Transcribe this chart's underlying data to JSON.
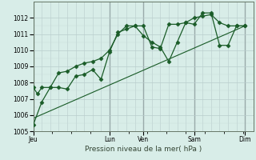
{
  "background_color": "#d8ede8",
  "plot_bg_color": "#d8ede8",
  "grid_color_minor": "#c8ddd8",
  "grid_color_major": "#b8cccc",
  "vline_color": "#99aaaa",
  "line_color": "#1a5c28",
  "spine_color": "#667766",
  "title": "Pression niveau de la mer( hPa )",
  "ylim": [
    1005,
    1013
  ],
  "yticks": [
    1005,
    1006,
    1007,
    1008,
    1009,
    1010,
    1011,
    1012
  ],
  "x_day_labels": [
    "Jeu",
    "Lun",
    "Ven",
    "Sam",
    "Dim"
  ],
  "x_day_positions": [
    0,
    9,
    13,
    19,
    25
  ],
  "xlim": [
    0,
    26
  ],
  "series1_x": [
    0,
    0.5,
    1,
    2,
    3,
    4,
    5,
    6,
    7,
    8,
    9,
    10,
    11,
    12,
    13,
    14,
    15,
    16,
    17,
    18,
    19,
    20,
    21,
    22,
    23,
    24,
    25
  ],
  "series1_y": [
    1007.7,
    1007.3,
    1007.7,
    1007.7,
    1008.6,
    1008.7,
    1009.0,
    1009.2,
    1009.3,
    1009.5,
    1010.0,
    1011.0,
    1011.5,
    1011.5,
    1011.5,
    1010.2,
    1010.1,
    1011.6,
    1011.6,
    1011.7,
    1011.6,
    1012.3,
    1012.3,
    1010.3,
    1010.3,
    1011.5,
    1011.5
  ],
  "series2_x": [
    0,
    1,
    2,
    3,
    4,
    5,
    6,
    7,
    8,
    9,
    10,
    11,
    12,
    13,
    14,
    15,
    16,
    17,
    18,
    19,
    20,
    21,
    22,
    23,
    24,
    25
  ],
  "series2_y": [
    1005.4,
    1006.8,
    1007.7,
    1007.7,
    1007.6,
    1008.4,
    1008.5,
    1008.8,
    1008.2,
    1009.9,
    1011.1,
    1011.3,
    1011.5,
    1010.9,
    1010.5,
    1010.2,
    1009.3,
    1010.5,
    1011.7,
    1012.0,
    1012.1,
    1012.2,
    1011.7,
    1011.5,
    1011.5,
    1011.5
  ],
  "series3_x": [
    0,
    25
  ],
  "series3_y": [
    1005.8,
    1011.5
  ],
  "marker_size": 2.5,
  "linewidth": 0.9
}
